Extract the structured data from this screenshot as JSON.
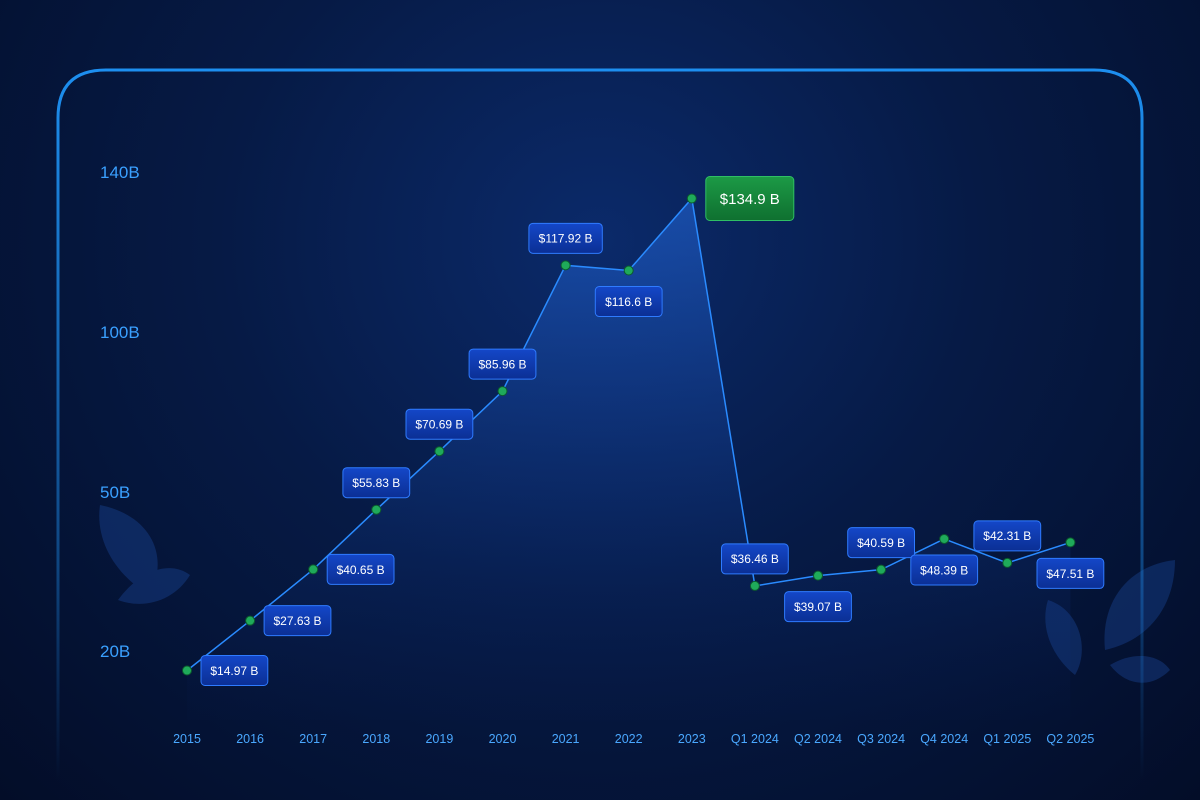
{
  "chart_data": {
    "type": "line",
    "title": "",
    "xlabel": "",
    "ylabel": "",
    "categories": [
      "2015",
      "2016",
      "2017",
      "2018",
      "2019",
      "2020",
      "2021",
      "2022",
      "2023",
      "Q1 2024",
      "Q2 2024",
      "Q3 2024",
      "Q4 2024",
      "Q1 2025",
      "Q2 2025"
    ],
    "values": [
      14.97,
      27.63,
      40.65,
      55.83,
      70.69,
      85.96,
      117.92,
      116.6,
      134.9,
      36.46,
      39.07,
      40.59,
      48.39,
      42.31,
      47.51
    ],
    "data_labels": [
      "$14.97 B",
      "$27.63 B",
      "$40.65 B",
      "$55.83 B",
      "$70.69 B",
      "$85.96 B",
      "$117.92 B",
      "$116.6 B",
      "$134.9 B",
      "$36.46 B",
      "$39.07 B",
      "$40.59 B",
      "$48.39 B",
      "$42.31 B",
      "$47.51 B"
    ],
    "y_ticks": [
      20,
      50,
      100,
      140
    ],
    "y_tick_labels": [
      "20B",
      "50B",
      "100B",
      "140B"
    ],
    "ylim": [
      5,
      145
    ],
    "grid": "vertical",
    "highlight_index": 8,
    "colors": {
      "frame": "#1d8ff0",
      "line": "#2a8bff",
      "marker": "#1faa5a",
      "label_bg": "#0d3aa8",
      "label_border": "#2f7bff",
      "highlight_bg": "#168a3c",
      "tick_text": "#3aa0ff"
    }
  }
}
